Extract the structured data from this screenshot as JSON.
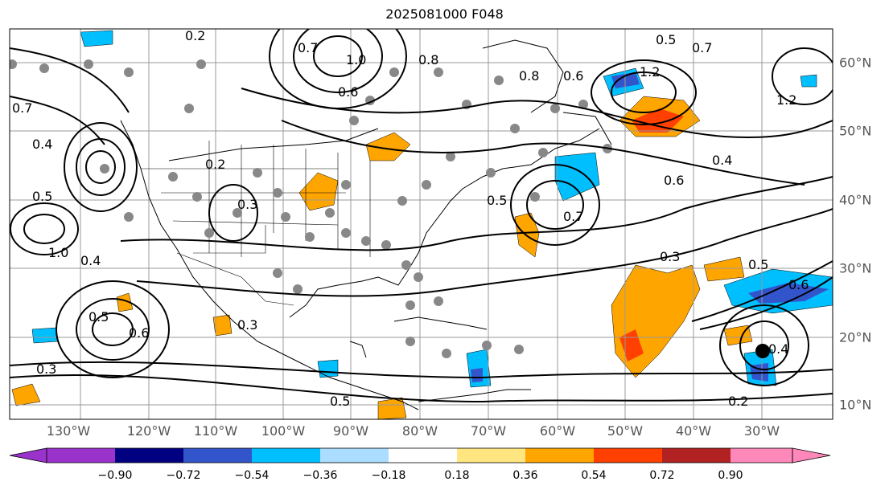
{
  "title": "2025081000 F048",
  "lon_labels": [
    "130°W",
    "120°W",
    "110°W",
    "100°W",
    "90°W",
    "80°W",
    "70°W",
    "60°W",
    "50°W",
    "40°W",
    "30°W"
  ],
  "lat_labels": [
    "60°N",
    "50°N",
    "40°N",
    "30°N",
    "20°N",
    "10°N"
  ],
  "colorbar": {
    "ticks": [
      "−0.90",
      "−0.72",
      "−0.54",
      "−0.36",
      "−0.18",
      "0.18",
      "0.36",
      "0.54",
      "0.72",
      "0.90"
    ],
    "colors": [
      "#9933cc",
      "#000080",
      "#3355cc",
      "#00bfff",
      "#aaddff",
      "#ffffff",
      "#ffe680",
      "#ffa500",
      "#ff4000",
      "#b22222",
      "#ff88bb"
    ]
  },
  "contour_labels": [
    "0.2",
    "0.7",
    "0.8",
    "0.6",
    "1.0",
    "0.8",
    "0.6",
    "0.7",
    "0.5",
    "1.2",
    "0.4",
    "0.5",
    "0.7",
    "0.6",
    "0.5",
    "0.4",
    "0.2",
    "0.3",
    "0.3",
    "0.4",
    "0.5",
    "0.6",
    "0.3",
    "0.3",
    "0.5",
    "0.6",
    "0.4",
    "0.2",
    "0.7",
    "1.0",
    "1.2",
    "0.5"
  ]
}
